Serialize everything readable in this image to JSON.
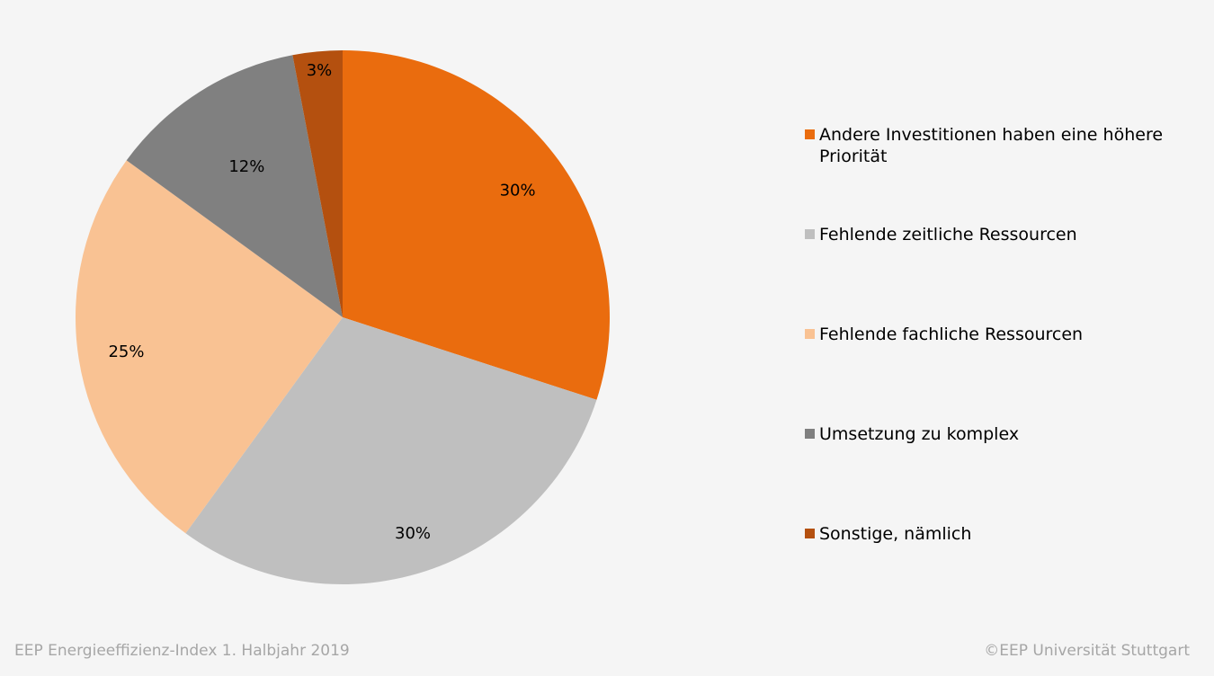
{
  "chart_data": {
    "type": "pie",
    "slices": [
      {
        "label": "Andere Investitionen haben eine höhere Priorität",
        "value": 30,
        "display": "30%",
        "color": "#ea6c0e"
      },
      {
        "label": "Fehlende zeitliche Ressourcen",
        "value": 30,
        "display": "30%",
        "color": "#bfbfbf"
      },
      {
        "label": "Fehlende fachliche Ressourcen",
        "value": 25,
        "display": "25%",
        "color": "#f9c293"
      },
      {
        "label": "Umsetzung zu komplex",
        "value": 12,
        "display": "12%",
        "color": "#808080"
      },
      {
        "label": "Sonstige, nämlich",
        "value": 3,
        "display": "3%",
        "color": "#b4500f"
      }
    ],
    "legend_position": "right"
  },
  "footer": {
    "source": "EEP Energieeffizienz-Index 1. Halbjahr 2019",
    "copyright": "©EEP Universität Stuttgart"
  }
}
